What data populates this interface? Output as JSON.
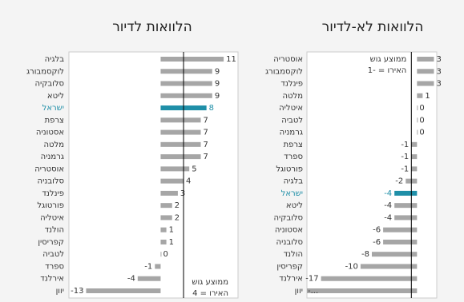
{
  "chart_data": [
    {
      "type": "bar",
      "orientation": "horizontal",
      "title": "הלוואות לדיור",
      "categories": [
        "בלגיה",
        "לוקסמבורג",
        "סלובקיה",
        "ליטא",
        "ישראל",
        "צרפת",
        "אסטוניה",
        "מלטה",
        "גרמניה",
        "אוסטריה",
        "סלובניה",
        "פינלנד",
        "פורטוגל",
        "איטליה",
        "הולנד",
        "קפריסין",
        "לטביה",
        "ספרד",
        "אירלנד",
        "יוון"
      ],
      "values": [
        11,
        9,
        9,
        9,
        8,
        7,
        7,
        7,
        7,
        5,
        4,
        3,
        2,
        2,
        1,
        1,
        0,
        -1,
        -4,
        -13
      ],
      "colors": [
        "#a6a6a6",
        "#a6a6a6",
        "#a6a6a6",
        "#a6a6a6",
        "#1f8fa8",
        "#a6a6a6",
        "#a6a6a6",
        "#a6a6a6",
        "#a6a6a6",
        "#a6a6a6",
        "#a6a6a6",
        "#a6a6a6",
        "#a6a6a6",
        "#a6a6a6",
        "#a6a6a6",
        "#a6a6a6",
        "#a6a6a6",
        "#a6a6a6",
        "#a6a6a6",
        "#a6a6a6"
      ],
      "xlim": [
        -16,
        13.5
      ],
      "reference_line": {
        "value": 4,
        "label": [
          "ממוצע גוש",
          "האירו = 4"
        ],
        "position": "bottom"
      }
    },
    {
      "type": "bar",
      "orientation": "horizontal",
      "title": "הלוואות לא-לדיור",
      "categories": [
        "אוסטריה",
        "לוקסמבורג",
        "פינלנד",
        "מלטה",
        "איטליה",
        "לטביה",
        "גרמניה",
        "צרפת",
        "ספרד",
        "פורטוגל",
        "בלגיה",
        "ישראל",
        "ליטא",
        "סלובקיה",
        "אסטוניה",
        "סלובניה",
        "הולנד",
        "קפריסין",
        "אירלנד",
        "יוון"
      ],
      "values": [
        3,
        3,
        3,
        1,
        0,
        0,
        0,
        -1,
        -1,
        -1,
        -2,
        -4,
        -4,
        -4,
        -6,
        -6,
        -8,
        -10,
        -17,
        -20
      ],
      "value_labels": [
        "3",
        "3",
        "3",
        "1",
        "0",
        "0",
        "0",
        "-1",
        "-1",
        "-1",
        "-2",
        "-4",
        "-4",
        "-4",
        "-6",
        "-6",
        "-8",
        "-10",
        "-17",
        "-..."
      ],
      "colors": [
        "#a6a6a6",
        "#a6a6a6",
        "#a6a6a6",
        "#a6a6a6",
        "#a6a6a6",
        "#a6a6a6",
        "#a6a6a6",
        "#a6a6a6",
        "#a6a6a6",
        "#a6a6a6",
        "#a6a6a6",
        "#1f8fa8",
        "#a6a6a6",
        "#a6a6a6",
        "#a6a6a6",
        "#a6a6a6",
        "#a6a6a6",
        "#a6a6a6",
        "#a6a6a6",
        "#a6a6a6"
      ],
      "xlim": [
        -19.5,
        3.5
      ],
      "reference_line": {
        "value": -1,
        "label": [
          "ממוצע גוש",
          "האירו = -1"
        ],
        "position": "top"
      }
    }
  ]
}
